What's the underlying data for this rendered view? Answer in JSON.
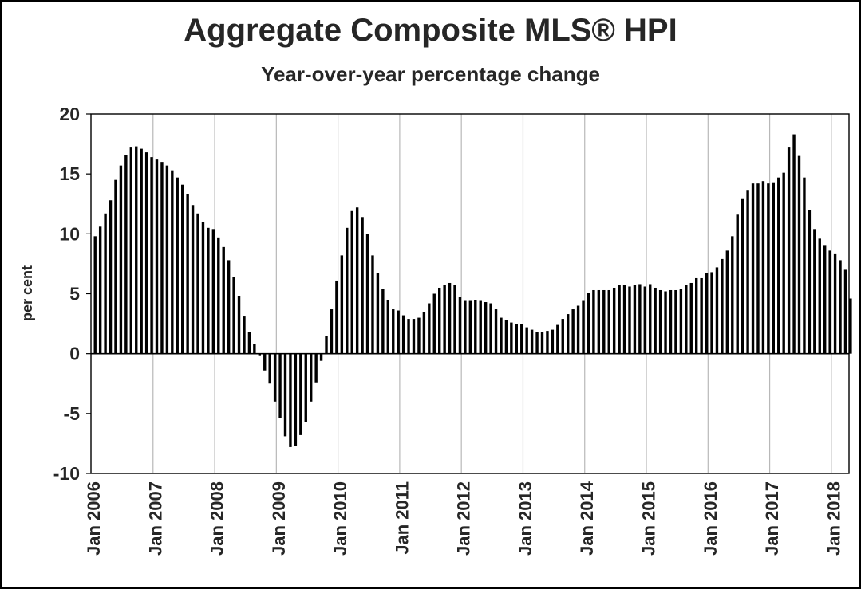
{
  "chart_data": {
    "type": "bar",
    "title": "Aggregate Composite MLS® HPI",
    "subtitle": "Year-over-year percentage change",
    "xlabel": "",
    "ylabel": "per cent",
    "ylim": [
      -10,
      20
    ],
    "yticks": [
      -10,
      -5,
      0,
      5,
      10,
      15,
      20
    ],
    "x_start": "Jan 2006",
    "frequency": "monthly",
    "xtick_labels": [
      "Jan 2006",
      "Jan 2007",
      "Jan 2008",
      "Jan 2009",
      "Jan 2010",
      "Jan 2011",
      "Jan 2012",
      "Jan 2013",
      "Jan 2014",
      "Jan 2015",
      "Jan 2016",
      "Jan 2017",
      "Jan 2018"
    ],
    "grid": "vertical",
    "legend": "none",
    "bar_color": "#000000",
    "values": [
      9.8,
      10.6,
      11.7,
      12.8,
      14.5,
      15.7,
      16.6,
      17.2,
      17.3,
      17.1,
      16.8,
      16.4,
      16.2,
      16.0,
      15.7,
      15.3,
      14.7,
      14.1,
      13.3,
      12.4,
      11.7,
      11.0,
      10.5,
      10.4,
      9.7,
      8.9,
      7.8,
      6.4,
      4.8,
      3.1,
      1.8,
      0.8,
      -0.2,
      -1.4,
      -2.5,
      -4.0,
      -5.4,
      -6.9,
      -7.8,
      -7.7,
      -6.8,
      -5.7,
      -4.0,
      -2.4,
      -0.6,
      1.5,
      3.7,
      6.1,
      8.2,
      10.5,
      11.9,
      12.2,
      11.4,
      10.0,
      8.2,
      6.7,
      5.4,
      4.5,
      3.7,
      3.6,
      3.2,
      2.9,
      2.9,
      3.0,
      3.5,
      4.2,
      5.0,
      5.5,
      5.7,
      5.9,
      5.7,
      4.7,
      4.4,
      4.4,
      4.5,
      4.4,
      4.3,
      4.2,
      3.7,
      3.0,
      2.8,
      2.6,
      2.5,
      2.5,
      2.2,
      2.0,
      1.8,
      1.8,
      1.9,
      2.0,
      2.4,
      2.9,
      3.3,
      3.7,
      4.0,
      4.4,
      5.1,
      5.3,
      5.3,
      5.3,
      5.3,
      5.5,
      5.7,
      5.7,
      5.6,
      5.7,
      5.8,
      5.6,
      5.8,
      5.5,
      5.3,
      5.2,
      5.3,
      5.3,
      5.4,
      5.7,
      5.9,
      6.3,
      6.3,
      6.7,
      6.8,
      7.2,
      7.9,
      8.6,
      9.8,
      11.6,
      12.9,
      13.6,
      14.2,
      14.2,
      14.4,
      14.2,
      14.3,
      14.7,
      15.1,
      17.2,
      18.3,
      16.5,
      14.7,
      12.0,
      10.4,
      9.6,
      9.0,
      8.6,
      8.3,
      7.8,
      7.0,
      4.6
    ]
  }
}
